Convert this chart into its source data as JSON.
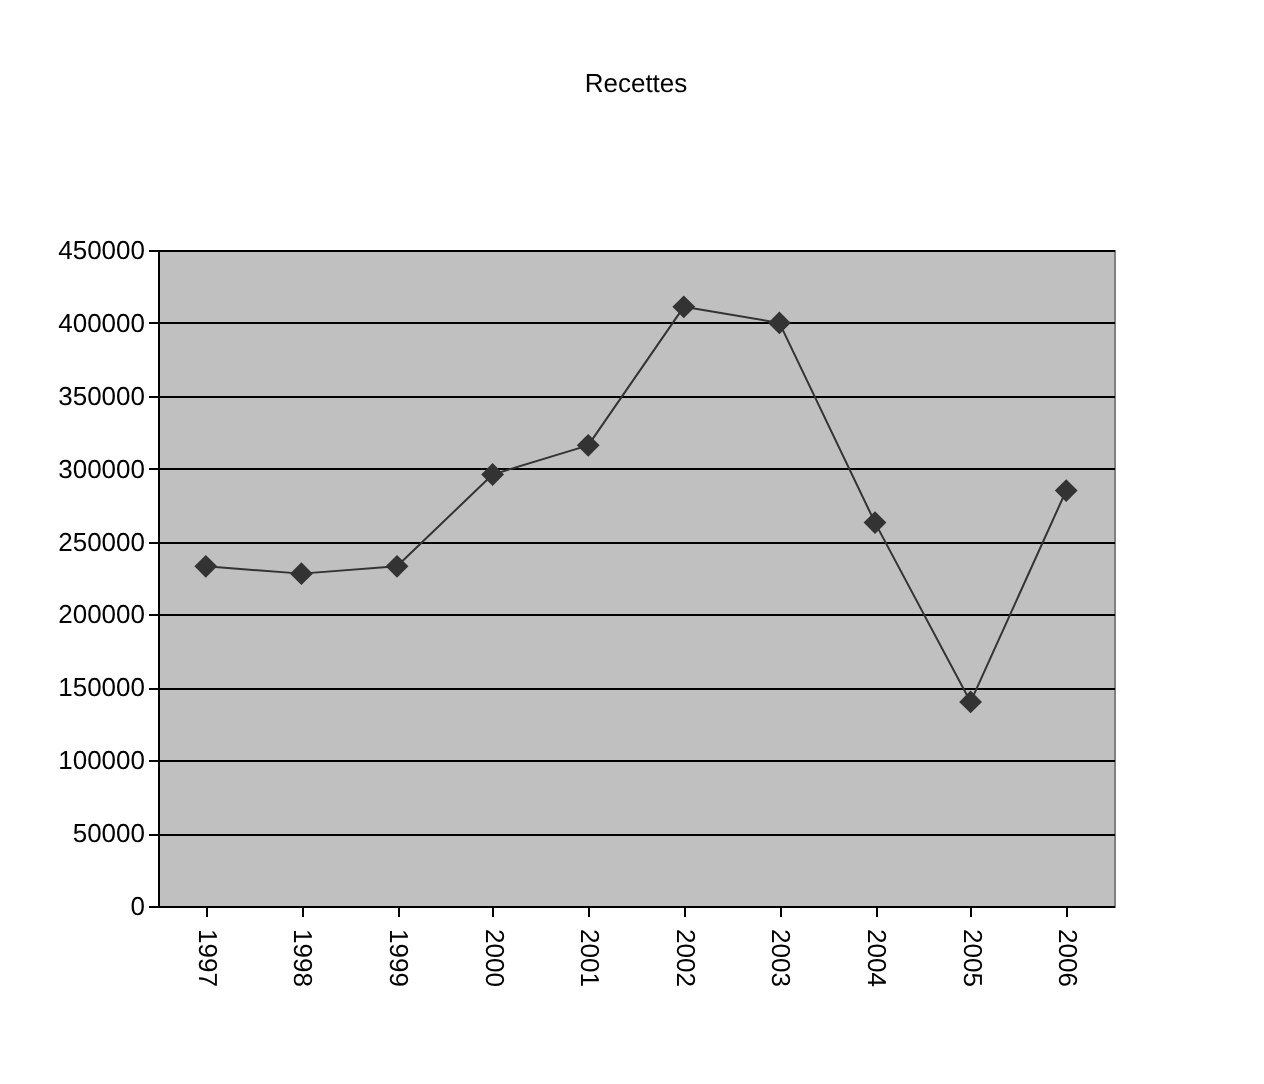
{
  "chart_data": {
    "type": "line",
    "title": "Recettes",
    "categories": [
      "1997",
      "1998",
      "1999",
      "2000",
      "2001",
      "2002",
      "2003",
      "2004",
      "2005",
      "2006"
    ],
    "series": [
      {
        "color": "#333333",
        "values": [
          233000,
          228000,
          233000,
          296000,
          316000,
          411000,
          400000,
          263000,
          140000,
          285000
        ]
      }
    ],
    "ylim": [
      0,
      450000
    ],
    "yticks": [
      0,
      50000,
      100000,
      150000,
      200000,
      250000,
      300000,
      350000,
      400000,
      450000
    ],
    "grid": "y",
    "legend": false,
    "marker": "diamond",
    "line_style": "solid"
  }
}
